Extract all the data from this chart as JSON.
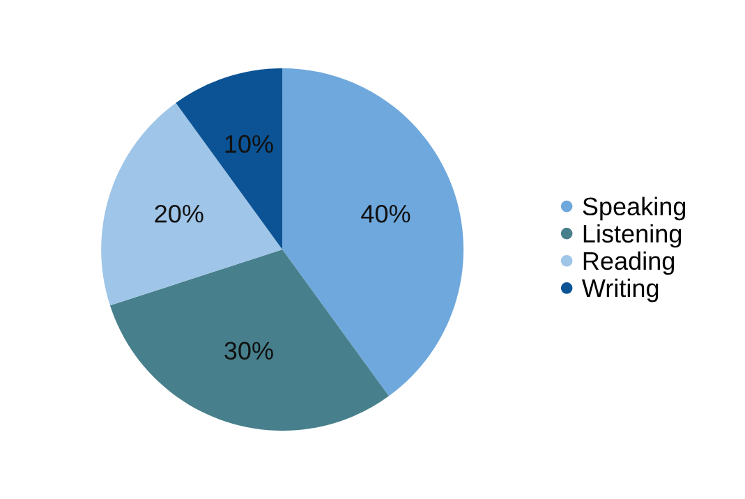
{
  "chart_data": {
    "type": "pie",
    "categories": [
      "Speaking",
      "Listening",
      "Reading",
      "Writing"
    ],
    "values": [
      40,
      30,
      20,
      10
    ],
    "colors": [
      "#6fa8dc",
      "#47808c",
      "#9fc5e8",
      "#0b5394"
    ],
    "value_labels": [
      "40%",
      "30%",
      "20%",
      "10%"
    ],
    "legend": "right"
  }
}
